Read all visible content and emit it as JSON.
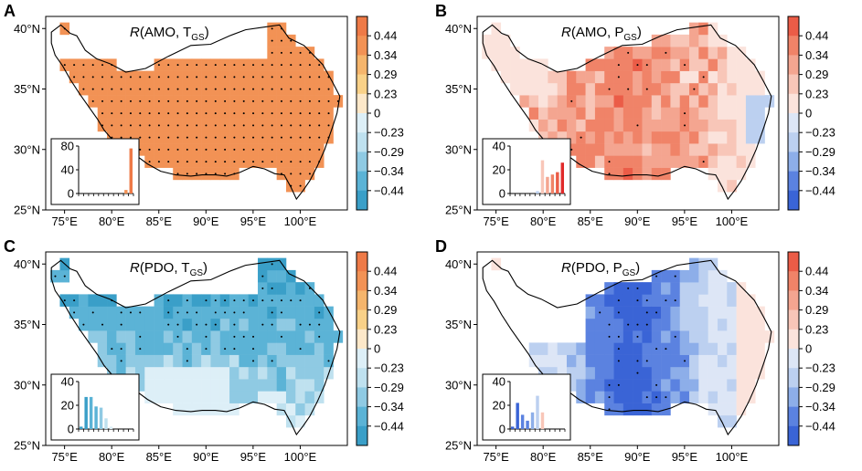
{
  "figure": {
    "palettes": {
      "warm_cool": [
        "#3a9fc8",
        "#5bb3d6",
        "#8fcae3",
        "#bfe1ef",
        "#ddeff7",
        "#fde8c9",
        "#f9d188",
        "#f5b56c",
        "#f29255",
        "#ee7a47",
        "#e8663a"
      ],
      "red_blue": [
        "#3a64d6",
        "#5b82e0",
        "#8daee9",
        "#bcd0f0",
        "#dde6f6",
        "#fbe3dc",
        "#f8c6b8",
        "#f4a590",
        "#f08368",
        "#eb5c47",
        "#e12b2b"
      ]
    },
    "colors": {
      "outline": "#000000",
      "white": "#ffffff",
      "dot": "#000000"
    }
  },
  "chart_data": [
    {
      "type": "heatmap",
      "panel_label": "A",
      "title": "R(AMO, T",
      "title_sub": "GS",
      "title_close": ")",
      "palette": "warm_cool",
      "colorbar_ticks": [
        "0.44",
        "0.34",
        "0.29",
        "0.23",
        "0",
        "−0.23",
        "−0.29",
        "−0.34",
        "−0.44"
      ],
      "x_ticks": [
        "75°E",
        "80°E",
        "85°E",
        "90°E",
        "95°E",
        "100°E"
      ],
      "y_ticks": [
        "40°N",
        "35°N",
        "30°N",
        "25°N"
      ],
      "xlim": [
        73,
        105
      ],
      "ylim": [
        25,
        41
      ],
      "field_mean": 0.4,
      "field_spread": 0.06,
      "stipple_share": 0.9,
      "inset": {
        "yticks": [
          "80",
          "40",
          "0"
        ],
        "ymax": 80,
        "values": [
          0,
          0,
          0,
          0,
          0,
          0,
          0,
          0,
          0,
          6,
          76
        ],
        "colors": [
          0,
          0,
          0,
          0,
          0,
          0,
          0,
          0,
          0,
          8,
          9
        ]
      }
    },
    {
      "type": "heatmap",
      "panel_label": "B",
      "title": "R(AMO, P",
      "title_sub": "GS",
      "title_close": ")",
      "palette": "red_blue",
      "colorbar_ticks": [
        "0.44",
        "0.34",
        "0.29",
        "0.23",
        "0",
        "−0.23",
        "−0.29",
        "−0.34",
        "−0.44"
      ],
      "x_ticks": [
        "75°E",
        "80°E",
        "85°E",
        "90°E",
        "95°E",
        "100°E"
      ],
      "y_ticks": [
        "40°N",
        "35°N",
        "30°N",
        "25°N"
      ],
      "xlim": [
        73,
        105
      ],
      "ylim": [
        25,
        41
      ],
      "field_mean": 0.2,
      "field_spread": 0.16,
      "stipple_share": 0.25,
      "inset": {
        "yticks": [
          "40",
          "20",
          "0"
        ],
        "ymax": 40,
        "values": [
          0,
          0,
          0,
          0,
          0,
          2,
          28,
          14,
          16,
          18,
          26
        ],
        "colors": [
          0,
          0,
          0,
          0,
          0,
          3,
          6,
          7,
          8,
          9,
          10
        ]
      }
    },
    {
      "type": "heatmap",
      "panel_label": "C",
      "title": "R(PDO, T",
      "title_sub": "GS",
      "title_close": ")",
      "palette": "warm_cool",
      "colorbar_ticks": [
        "0.44",
        "0.34",
        "0.29",
        "0.23",
        "0",
        "−0.23",
        "−0.29",
        "−0.34",
        "−0.44"
      ],
      "x_ticks": [
        "75°E",
        "80°E",
        "85°E",
        "90°E",
        "95°E",
        "100°E"
      ],
      "y_ticks": [
        "40°N",
        "35°N",
        "30°N",
        "25°N"
      ],
      "xlim": [
        73,
        105
      ],
      "ylim": [
        25,
        41
      ],
      "field_mean": -0.3,
      "field_spread": 0.12,
      "stipple_share": 0.45,
      "inset": {
        "yticks": [
          "40",
          "20",
          "0"
        ],
        "ymax": 40,
        "values": [
          2,
          27,
          27,
          19,
          18,
          9,
          2,
          0,
          0,
          0,
          0
        ],
        "colors": [
          0,
          0,
          1,
          1,
          2,
          3,
          4,
          5,
          5,
          5,
          5
        ]
      }
    },
    {
      "type": "heatmap",
      "panel_label": "D",
      "title": "R(PDO, P",
      "title_sub": "GS",
      "title_close": ")",
      "palette": "red_blue",
      "colorbar_ticks": [
        "0.44",
        "0.34",
        "0.29",
        "0.23",
        "0",
        "−0.23",
        "−0.29",
        "−0.34",
        "−0.44"
      ],
      "x_ticks": [
        "75°E",
        "80°E",
        "85°E",
        "90°E",
        "95°E",
        "100°E"
      ],
      "y_ticks": [
        "40°N",
        "35°N",
        "30°N",
        "25°N"
      ],
      "xlim": [
        73,
        105
      ],
      "ylim": [
        25,
        41
      ],
      "field_mean": -0.22,
      "field_spread": 0.2,
      "stipple_share": 0.3,
      "inset": {
        "yticks": [
          "40",
          "20",
          "0"
        ],
        "ymax": 40,
        "values": [
          2,
          22,
          12,
          7,
          14,
          28,
          14,
          0,
          0,
          0,
          0
        ],
        "colors": [
          0,
          0,
          1,
          1,
          2,
          3,
          6,
          5,
          5,
          5,
          5
        ]
      }
    }
  ]
}
